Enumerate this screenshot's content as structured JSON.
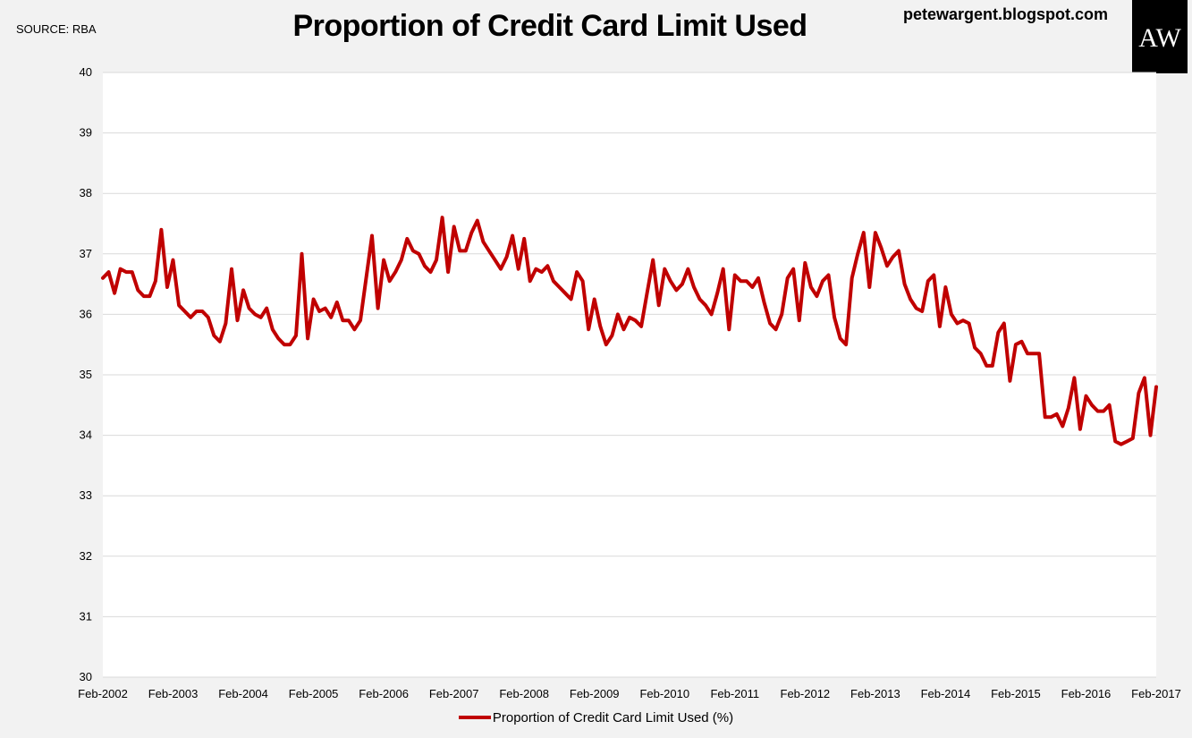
{
  "header": {
    "source": "SOURCE: RBA",
    "title": "Proportion of Credit Card Limit Used",
    "blog": "petewargent.blogspot.com",
    "logo_text": "AW"
  },
  "colors": {
    "line": "#c00000",
    "plot_background": "#ffffff",
    "page_background": "#f2f2f2",
    "grid": "#d9d9d9",
    "logo_background": "#000000",
    "logo_text": "#ffffff"
  },
  "chart_data": {
    "type": "line",
    "title": "Proportion of Credit Card Limit Used",
    "xlabel": "",
    "ylabel": "",
    "ylim": [
      30,
      40
    ],
    "yticks": [
      30,
      31,
      32,
      33,
      34,
      35,
      36,
      37,
      38,
      39,
      40
    ],
    "xtick_labels": [
      "Feb-2002",
      "Feb-2003",
      "Feb-2004",
      "Feb-2005",
      "Feb-2006",
      "Feb-2007",
      "Feb-2008",
      "Feb-2009",
      "Feb-2010",
      "Feb-2011",
      "Feb-2012",
      "Feb-2013",
      "Feb-2014",
      "Feb-2015",
      "Feb-2016",
      "Feb-2017"
    ],
    "x_start": "Feb-2002",
    "x_end": "Feb-2017",
    "frequency": "monthly",
    "grid": true,
    "legend": "bottom",
    "series": [
      {
        "name": "Proportion of Credit Card Limit Used (%)",
        "values": [
          36.6,
          36.7,
          36.35,
          36.75,
          36.7,
          36.7,
          36.4,
          36.3,
          36.3,
          36.55,
          37.4,
          36.45,
          36.9,
          36.15,
          36.05,
          35.95,
          36.05,
          36.05,
          35.95,
          35.65,
          35.55,
          35.85,
          36.75,
          35.9,
          36.4,
          36.1,
          36.0,
          35.95,
          36.1,
          35.75,
          35.6,
          35.5,
          35.5,
          35.65,
          37.0,
          35.6,
          36.25,
          36.05,
          36.1,
          35.95,
          36.2,
          35.9,
          35.9,
          35.75,
          35.9,
          36.6,
          37.3,
          36.1,
          36.9,
          36.55,
          36.7,
          36.9,
          37.25,
          37.05,
          37.0,
          36.8,
          36.7,
          36.9,
          37.6,
          36.7,
          37.45,
          37.05,
          37.05,
          37.35,
          37.55,
          37.2,
          37.05,
          36.9,
          36.75,
          36.95,
          37.3,
          36.75,
          37.25,
          36.55,
          36.75,
          36.7,
          36.8,
          36.55,
          36.45,
          36.35,
          36.25,
          36.7,
          36.55,
          35.75,
          36.25,
          35.8,
          35.5,
          35.65,
          36.0,
          35.75,
          35.95,
          35.9,
          35.8,
          36.35,
          36.9,
          36.15,
          36.75,
          36.55,
          36.4,
          36.5,
          36.75,
          36.45,
          36.25,
          36.15,
          36.0,
          36.35,
          36.75,
          35.75,
          36.65,
          36.55,
          36.55,
          36.45,
          36.6,
          36.2,
          35.85,
          35.75,
          36.0,
          36.6,
          36.75,
          35.9,
          36.85,
          36.45,
          36.3,
          36.55,
          36.65,
          35.95,
          35.6,
          35.5,
          36.6,
          37.0,
          37.35,
          36.45,
          37.35,
          37.1,
          36.8,
          36.95,
          37.05,
          36.5,
          36.25,
          36.1,
          36.05,
          36.55,
          36.65,
          35.8,
          36.45,
          36.0,
          35.85,
          35.9,
          35.85,
          35.45,
          35.35,
          35.15,
          35.15,
          35.7,
          35.85,
          34.9,
          35.5,
          35.55,
          35.35,
          35.35,
          35.35,
          34.3,
          34.3,
          34.35,
          34.15,
          34.45,
          34.95,
          34.1,
          34.65,
          34.5,
          34.4,
          34.4,
          34.5,
          33.9,
          33.85,
          33.9,
          33.95,
          34.7,
          34.95,
          34.0,
          34.8
        ]
      }
    ]
  }
}
